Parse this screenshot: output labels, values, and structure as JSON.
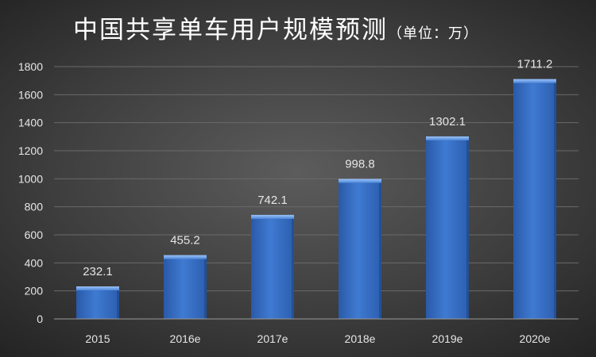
{
  "chart_data": {
    "type": "bar",
    "title": "中国共享单车用户规模预测",
    "subtitle": "（单位：万）",
    "categories": [
      "2015",
      "2016e",
      "2017e",
      "2018e",
      "2019e",
      "2020e"
    ],
    "values": [
      232.1,
      455.2,
      742.1,
      998.8,
      1302.1,
      1711.2
    ],
    "data_labels": [
      "232.1",
      "455.2",
      "742.1",
      "998.8",
      "1302.1",
      "1711.2"
    ],
    "xlabel": "",
    "ylabel": "",
    "ylim": [
      0,
      1800
    ],
    "yticks": [
      "0",
      "200",
      "400",
      "600",
      "800",
      "1000",
      "1200",
      "1400",
      "1600",
      "1800"
    ],
    "grid": true,
    "legend": "none",
    "colors": {
      "bar": "#3b73c9",
      "bar_highlight": "#6aa0ec",
      "bar_shadow": "#1f4a8f",
      "background": "#3e3e3e",
      "gridline": "#6a6a6a",
      "text": "#e6e6e6"
    }
  }
}
